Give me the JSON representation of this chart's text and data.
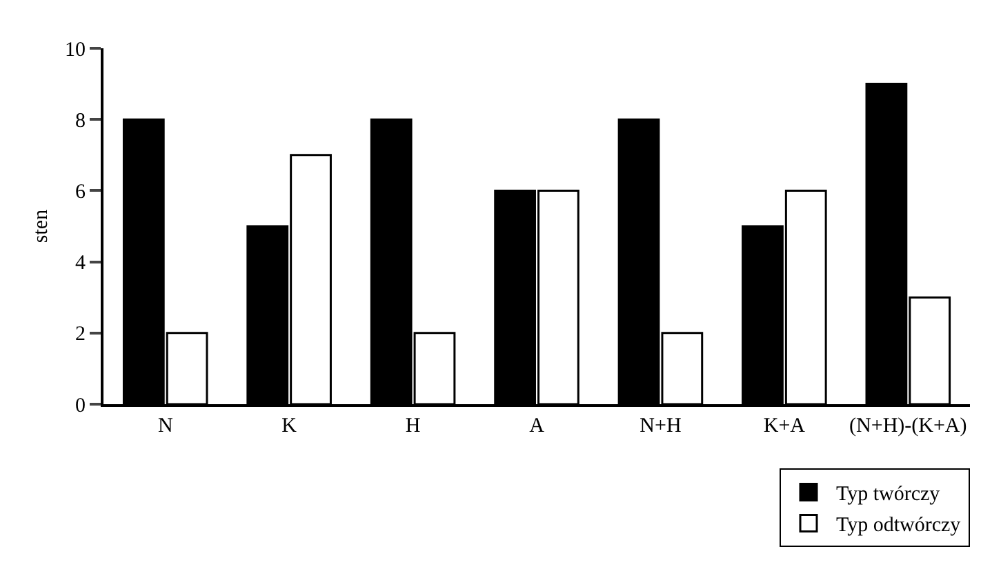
{
  "chart_data": {
    "type": "bar",
    "ylabel": "sten",
    "categories": [
      "N",
      "K",
      "H",
      "A",
      "N+H",
      "K+A",
      "(N+H)-(K+A)"
    ],
    "series": [
      {
        "name": "Typ twórczy",
        "color": "#000000",
        "values": [
          8,
          5,
          8,
          6,
          8,
          5,
          9
        ]
      },
      {
        "name": "Typ odtwórczy",
        "color": "#ffffff",
        "values": [
          2,
          7,
          2,
          6,
          2,
          6,
          3
        ]
      }
    ],
    "ylim": [
      0,
      10
    ],
    "yticks": [
      0,
      2,
      4,
      6,
      8,
      10
    ],
    "grid": false,
    "legend": "bottom right"
  }
}
